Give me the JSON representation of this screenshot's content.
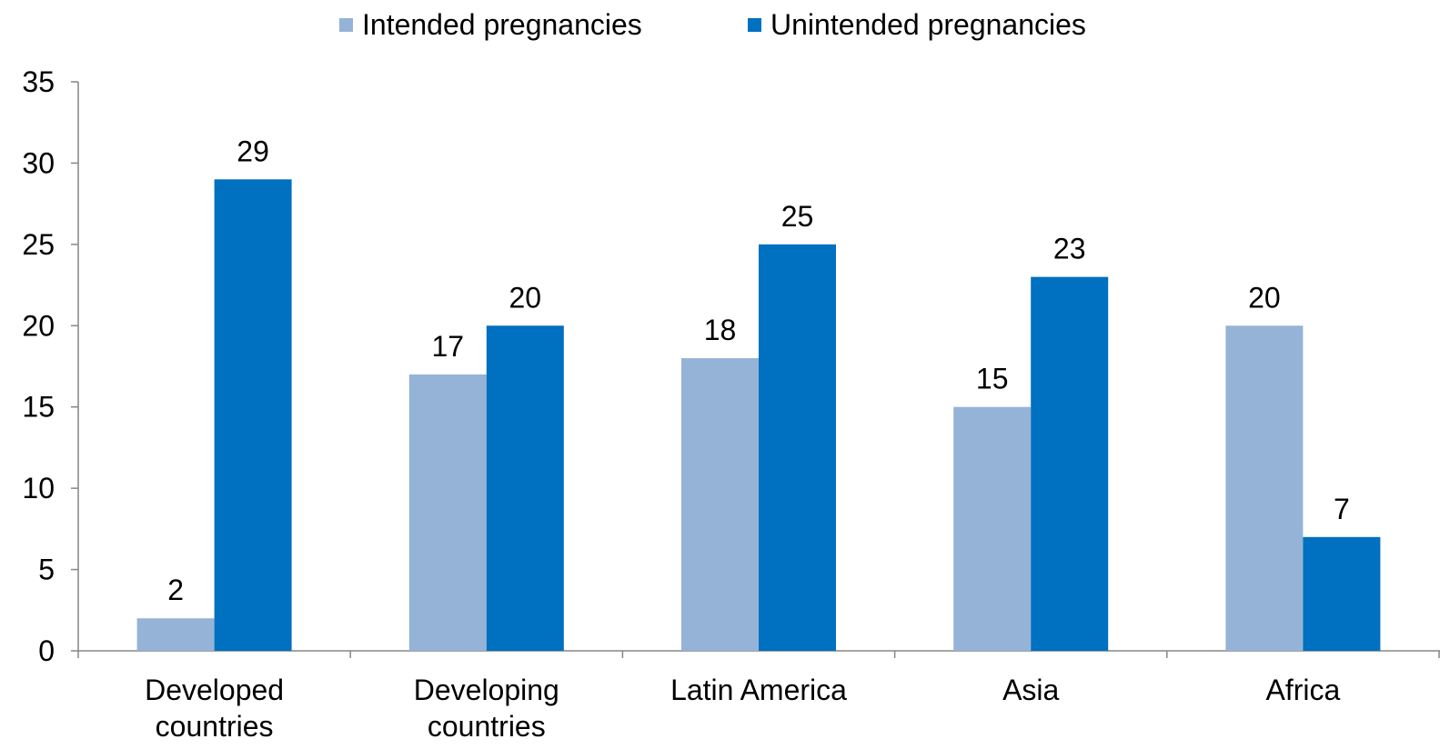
{
  "chart_data": {
    "type": "bar",
    "categories": [
      "Developed countries",
      "Developing countries",
      "Latin America",
      "Asia",
      "Africa"
    ],
    "series": [
      {
        "name": "Intended pregnancies",
        "color": "#95b3d7",
        "values": [
          2,
          17,
          18,
          15,
          20
        ]
      },
      {
        "name": "Unintended pregnancies",
        "color": "#0070c0",
        "values": [
          29,
          20,
          25,
          23,
          7
        ]
      }
    ],
    "ylim": [
      0,
      35
    ],
    "yticks": [
      0,
      5,
      10,
      15,
      20,
      25,
      30,
      35
    ],
    "grid": false,
    "legend": "top"
  }
}
